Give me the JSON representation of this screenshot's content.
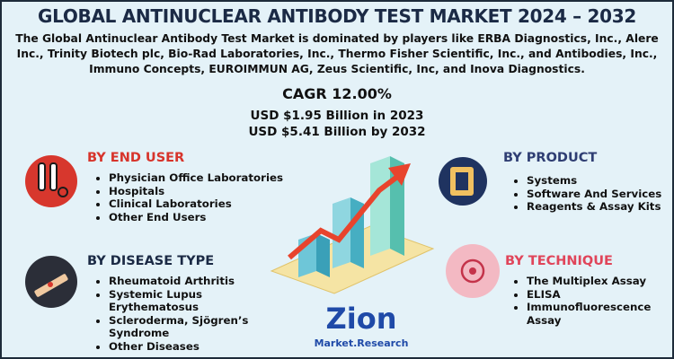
{
  "header": {
    "title": "GLOBAL ANTINUCLEAR ANTIBODY TEST MARKET 2024 – 2032",
    "description": "The Global Antinuclear Antibody Test Market is dominated by players like ERBA Diagnostics, Inc., Alere Inc., Trinity Biotech plc, Bio-Rad Laboratories, Inc., Thermo Fisher Scientific, Inc., and Antibodies, Inc., Immuno Concepts, EUROIMMUN AG, Zeus Scientific, Inc, and Inova Diagnostics."
  },
  "stats": {
    "cagr": "CAGR 12.00%",
    "value_2023": "USD $1.95 Billion in 2023",
    "value_2032": "USD $5.41 Billion by 2032"
  },
  "sections": [
    {
      "title": "BY END USER",
      "items": [
        "Physician Office Laboratories",
        "Hospitals",
        "Clinical Laboratories",
        "Other End Users"
      ]
    },
    {
      "title": "BY DISEASE TYPE",
      "items": [
        "Rheumatoid Arthritis",
        "Systemic Lupus Erythematosus",
        "Scleroderma, Sjögren’s Syndrome",
        "Other Diseases"
      ]
    },
    {
      "title": "BY PRODUCT",
      "items": [
        "Systems",
        "Software And Services",
        "Reagents & Assay Kits"
      ]
    },
    {
      "title": "BY TECHNIQUE",
      "items": [
        "The Multiplex Assay",
        "ELISA",
        "Immunofluorescence Assay"
      ]
    }
  ],
  "logo": {
    "name": "Zion",
    "subtitle": "Market.Research"
  }
}
